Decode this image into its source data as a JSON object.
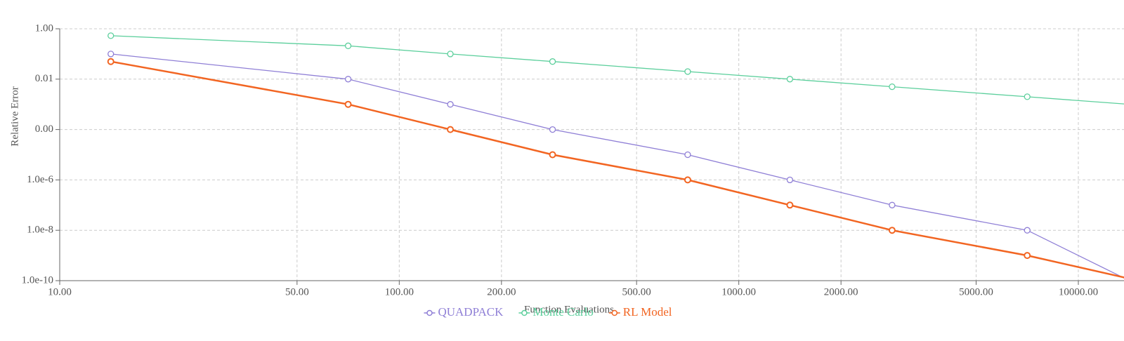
{
  "chart_data": {
    "type": "line",
    "x_label": "Function Evaluations",
    "y_label": "Relative Error",
    "xscale": "log",
    "yscale": "log",
    "grid": true,
    "x": [
      14.14,
      70.71,
      141.4,
      282.8,
      707.1,
      1414,
      2828,
      7071,
      14142
    ],
    "xlim": [
      10,
      10000
    ],
    "xticks": [
      {
        "value": 10,
        "label": "10.00"
      },
      {
        "value": 50,
        "label": "50.00"
      },
      {
        "value": 100,
        "label": "100.00"
      },
      {
        "value": 200,
        "label": "200.00"
      },
      {
        "value": 500,
        "label": "500.00"
      },
      {
        "value": 1000,
        "label": "1000.00"
      },
      {
        "value": 2000,
        "label": "2000.00"
      },
      {
        "value": 5000,
        "label": "5000.00"
      },
      {
        "value": 10000,
        "label": "10000.00"
      }
    ],
    "ylim": [
      1e-10,
      1
    ],
    "yticks": [
      {
        "value": 1,
        "label": "1.00"
      },
      {
        "value": 0.01,
        "label": "0.01"
      },
      {
        "value": 0.0001,
        "label": "0.00"
      },
      {
        "value": 1e-06,
        "label": "1.0e-6"
      },
      {
        "value": 1e-08,
        "label": "1.0e-8"
      },
      {
        "value": 1e-10,
        "label": "1.0e-10"
      }
    ],
    "series": [
      {
        "name": "QUADPACK",
        "color": "#8f7fd6",
        "values": [
          0.1,
          0.01,
          0.001,
          0.0001,
          1e-05,
          1e-06,
          1e-07,
          1e-08,
          1e-10
        ]
      },
      {
        "name": "Monte Carlo",
        "color": "#5ccf9c",
        "values": [
          0.53,
          0.21,
          0.1,
          0.05,
          0.02,
          0.01,
          0.005,
          0.002,
          0.001
        ]
      },
      {
        "name": "RL Model",
        "color": "#f26522",
        "values": [
          0.05,
          0.001,
          0.0001,
          1e-05,
          1e-06,
          1e-07,
          1e-08,
          1e-09,
          1.2e-10
        ]
      }
    ]
  }
}
